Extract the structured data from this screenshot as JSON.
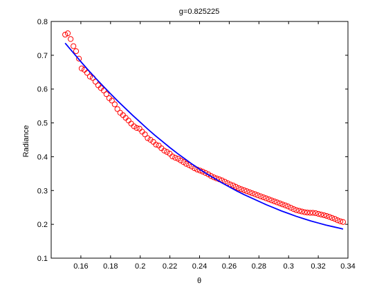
{
  "chart_data": {
    "type": "scatter",
    "title": "g=0.825225",
    "xlabel": "θ",
    "ylabel": "Radiance",
    "xlim": [
      0.14,
      0.34
    ],
    "ylim": [
      0.1,
      0.8
    ],
    "xticks": [
      0.16,
      0.18,
      0.2,
      0.22,
      0.24,
      0.26,
      0.28,
      0.3,
      0.32,
      0.34
    ],
    "xtick_labels": [
      "0.16",
      "0.18",
      "0.2",
      "0.22",
      "0.24",
      "0.26",
      "0.28",
      "0.3",
      "0.32",
      "0.34"
    ],
    "yticks": [
      0.1,
      0.2,
      0.3,
      0.4,
      0.5,
      0.6,
      0.7,
      0.8
    ],
    "ytick_labels": [
      "0.1",
      "0.2",
      "0.3",
      "0.4",
      "0.5",
      "0.6",
      "0.7",
      "0.8"
    ],
    "grid": false,
    "legend": false,
    "series": [
      {
        "kind": "scatter",
        "marker": "circle-open",
        "color": "#ff0000",
        "x": [
          0.1494,
          0.1512,
          0.1531,
          0.155,
          0.1568,
          0.1587,
          0.1605,
          0.1624,
          0.1642,
          0.1661,
          0.168,
          0.1698,
          0.1717,
          0.1735,
          0.1754,
          0.1772,
          0.1791,
          0.1809,
          0.1828,
          0.1846,
          0.1865,
          0.1884,
          0.1902,
          0.1921,
          0.1939,
          0.1958,
          0.1976,
          0.1995,
          0.2013,
          0.2032,
          0.205,
          0.2069,
          0.2088,
          0.2106,
          0.2125,
          0.2143,
          0.2162,
          0.218,
          0.2199,
          0.2217,
          0.2236,
          0.2255,
          0.2273,
          0.2292,
          0.231,
          0.2329,
          0.2347,
          0.2366,
          0.2384,
          0.2403,
          0.2421,
          0.244,
          0.2459,
          0.2477,
          0.2496,
          0.2514,
          0.2533,
          0.2551,
          0.257,
          0.2588,
          0.2607,
          0.2626,
          0.2644,
          0.2663,
          0.2681,
          0.27,
          0.2718,
          0.2737,
          0.2755,
          0.2774,
          0.2792,
          0.2811,
          0.283,
          0.2848,
          0.2867,
          0.2885,
          0.2904,
          0.2922,
          0.2941,
          0.2959,
          0.2978,
          0.2996,
          0.3015,
          0.3034,
          0.3052,
          0.3071,
          0.3089,
          0.3108,
          0.3126,
          0.3145,
          0.3163,
          0.3182,
          0.3201,
          0.3219,
          0.3238,
          0.3256,
          0.3275,
          0.3293,
          0.3312,
          0.333,
          0.3349,
          0.3367
        ],
        "y": [
          0.761,
          0.765,
          0.748,
          0.727,
          0.712,
          0.69,
          0.661,
          0.657,
          0.648,
          0.637,
          0.633,
          0.622,
          0.611,
          0.603,
          0.596,
          0.585,
          0.573,
          0.566,
          0.555,
          0.541,
          0.53,
          0.523,
          0.515,
          0.507,
          0.498,
          0.49,
          0.485,
          0.483,
          0.474,
          0.466,
          0.455,
          0.45,
          0.444,
          0.436,
          0.433,
          0.425,
          0.418,
          0.414,
          0.409,
          0.401,
          0.397,
          0.394,
          0.389,
          0.384,
          0.379,
          0.375,
          0.371,
          0.366,
          0.362,
          0.359,
          0.356,
          0.352,
          0.348,
          0.343,
          0.339,
          0.336,
          0.333,
          0.33,
          0.326,
          0.322,
          0.318,
          0.315,
          0.311,
          0.307,
          0.304,
          0.301,
          0.298,
          0.295,
          0.292,
          0.289,
          0.286,
          0.283,
          0.28,
          0.277,
          0.274,
          0.271,
          0.268,
          0.265,
          0.262,
          0.259,
          0.256,
          0.253,
          0.249,
          0.245,
          0.242,
          0.24,
          0.238,
          0.236,
          0.235,
          0.234,
          0.234,
          0.233,
          0.231,
          0.229,
          0.227,
          0.225,
          0.222,
          0.219,
          0.216,
          0.212,
          0.209,
          0.207
        ]
      },
      {
        "kind": "line",
        "color": "#0000ff",
        "x": [
          0.1494,
          0.155,
          0.16,
          0.165,
          0.17,
          0.175,
          0.18,
          0.185,
          0.19,
          0.195,
          0.2,
          0.205,
          0.21,
          0.215,
          0.22,
          0.225,
          0.23,
          0.235,
          0.24,
          0.245,
          0.25,
          0.255,
          0.26,
          0.265,
          0.27,
          0.275,
          0.28,
          0.285,
          0.29,
          0.295,
          0.3,
          0.305,
          0.31,
          0.315,
          0.32,
          0.325,
          0.33,
          0.335,
          0.3367
        ],
        "y": [
          0.736,
          0.707,
          0.681,
          0.656,
          0.632,
          0.609,
          0.586,
          0.564,
          0.543,
          0.522,
          0.502,
          0.482,
          0.463,
          0.445,
          0.427,
          0.41,
          0.394,
          0.378,
          0.363,
          0.349,
          0.336,
          0.323,
          0.311,
          0.299,
          0.288,
          0.278,
          0.268,
          0.258,
          0.249,
          0.24,
          0.232,
          0.224,
          0.217,
          0.21,
          0.204,
          0.198,
          0.193,
          0.188,
          0.186
        ]
      }
    ]
  }
}
